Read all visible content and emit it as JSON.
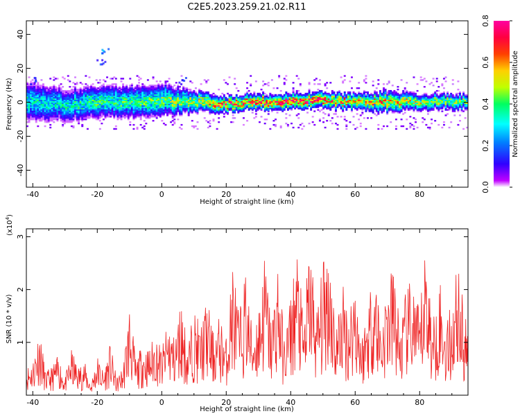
{
  "page_title": "C2E5.2023.259.21.02.R11",
  "spectrogram": {
    "xlabel": "Height of straight line (km)",
    "ylabel": "Frequency (Hz)",
    "xlim": [
      -42,
      95
    ],
    "ylim": [
      -50,
      48
    ],
    "x_ticks": [
      -40,
      -20,
      0,
      20,
      40,
      60,
      80
    ],
    "y_ticks": [
      -40,
      -20,
      0,
      20,
      40
    ],
    "colorbar": {
      "label": "Normalized spectral amplitude",
      "range": [
        0.0,
        0.8
      ],
      "ticks": [
        "0.0",
        "0.2",
        "0.4",
        "0.6",
        "0.8"
      ],
      "colormap": [
        "#ffffff",
        "#c000ff",
        "#3000ff",
        "#0080ff",
        "#00ffff",
        "#00ff60",
        "#c0ff00",
        "#ffd000",
        "#ff4000",
        "#ff0040",
        "#ff00a0"
      ]
    }
  },
  "snr_plot": {
    "xlabel": "Height of straight line (km)",
    "ylabel": "SNR (10 * v/v)",
    "scale_label": "(x10",
    "scale_exp": "4",
    "scale_close": ")",
    "xlim": [
      -42,
      95
    ],
    "ylim": [
      0,
      3.15
    ],
    "x_ticks": [
      -40,
      -20,
      0,
      20,
      40,
      60,
      80
    ],
    "y_ticks": [
      1,
      2,
      3
    ],
    "line_color": "#ee2222"
  },
  "chart_data": [
    {
      "type": "heatmap",
      "title": "C2E5.2023.259.21.02.R11",
      "xlabel": "Height of straight line (km)",
      "ylabel": "Frequency (Hz)",
      "x_range": [
        -42,
        95
      ],
      "y_range": [
        -50,
        48
      ],
      "colorbar_label": "Normalized spectral amplitude",
      "colorbar_range": [
        0.0,
        0.8
      ],
      "ridge": [
        {
          "x": -40,
          "center": 0,
          "halfwidth": 7,
          "amplitude": 0.35
        },
        {
          "x": -30,
          "center": -2,
          "halfwidth": 6,
          "amplitude": 0.35
        },
        {
          "x": -20,
          "center": 0,
          "halfwidth": 6,
          "amplitude": 0.4
        },
        {
          "x": -10,
          "center": 0,
          "halfwidth": 6,
          "amplitude": 0.4
        },
        {
          "x": 0,
          "center": 1,
          "halfwidth": 6,
          "amplitude": 0.45
        },
        {
          "x": 10,
          "center": 0,
          "halfwidth": 4,
          "amplitude": 0.5
        },
        {
          "x": 20,
          "center": -1,
          "halfwidth": 3,
          "amplitude": 0.7
        },
        {
          "x": 30,
          "center": 0,
          "halfwidth": 3,
          "amplitude": 0.7
        },
        {
          "x": 40,
          "center": 0,
          "halfwidth": 3,
          "amplitude": 0.75
        },
        {
          "x": 50,
          "center": 1,
          "halfwidth": 3,
          "amplitude": 0.7
        },
        {
          "x": 60,
          "center": 0,
          "halfwidth": 3,
          "amplitude": 0.6
        },
        {
          "x": 70,
          "center": 0,
          "halfwidth": 4,
          "amplitude": 0.6
        },
        {
          "x": 80,
          "center": 0,
          "halfwidth": 3,
          "amplitude": 0.5
        },
        {
          "x": 95,
          "center": 0,
          "halfwidth": 3,
          "amplitude": 0.45
        }
      ],
      "features": [
        {
          "x": -18,
          "y": 31,
          "amplitude": 0.3
        },
        {
          "x": -19,
          "y": 24,
          "amplitude": 0.2
        },
        {
          "x": -40,
          "y": 13,
          "amplitude": 0.2
        },
        {
          "x": 6,
          "y": 13,
          "amplitude": 0.2
        }
      ]
    },
    {
      "type": "line",
      "title": "",
      "xlabel": "Height of straight line (km)",
      "ylabel": "SNR (10 * v/v)",
      "units_multiplier": "x10^4",
      "x_range": [
        -42,
        95
      ],
      "y_range": [
        0,
        3.15
      ],
      "series": [
        {
          "x": [
            -42,
            -40,
            -38,
            -36,
            -34,
            -32,
            -30,
            -28,
            -26,
            -24,
            -22,
            -20,
            -18,
            -16,
            -14,
            -12,
            -10,
            -8,
            -6,
            -4,
            -2,
            0,
            2,
            4,
            6,
            8,
            10,
            12,
            14,
            16,
            18,
            20,
            22,
            24,
            26,
            28,
            30,
            32,
            34,
            36,
            38,
            40,
            42,
            44,
            46,
            48,
            50,
            52,
            54,
            56,
            58,
            60,
            62,
            64,
            66,
            68,
            70,
            72,
            74,
            76,
            78,
            80,
            82,
            84,
            86,
            88,
            90,
            92,
            94,
            95
          ],
          "y": [
            0.5,
            0.6,
            1.2,
            0.4,
            0.5,
            0.7,
            0.3,
            0.8,
            0.5,
            0.6,
            0.2,
            0.7,
            0.4,
            0.9,
            0.3,
            0.5,
            1.6,
            0.6,
            0.9,
            0.8,
            1.1,
            0.8,
            1.3,
            1.0,
            1.7,
            0.9,
            1.5,
            1.2,
            1.7,
            1.1,
            1.4,
            1.0,
            2.4,
            1.4,
            2.2,
            1.2,
            1.6,
            2.5,
            1.3,
            2.4,
            1.0,
            1.8,
            2.6,
            1.3,
            2.8,
            1.5,
            2.3,
            2.9,
            1.2,
            2.0,
            1.5,
            2.2,
            1.0,
            1.7,
            2.4,
            1.3,
            2.0,
            2.3,
            1.2,
            1.9,
            2.0,
            1.4,
            2.9,
            1.2,
            2.2,
            1.3,
            1.6,
            2.6,
            1.1,
            2.3
          ]
        }
      ]
    }
  ]
}
